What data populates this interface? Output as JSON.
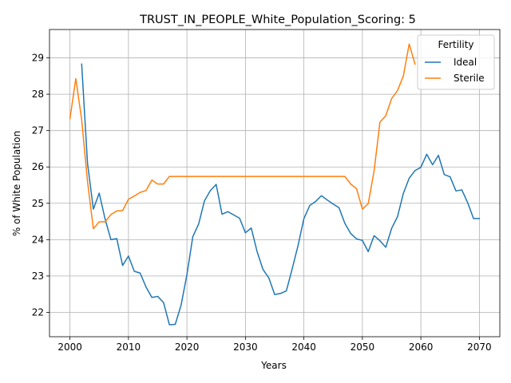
{
  "chart_data": {
    "type": "line",
    "title": "TRUST_IN_PEOPLE_White_Population_Scoring: 5",
    "xlabel": "Years",
    "ylabel": "% of White Population",
    "xlim": [
      1996.5,
      2073.5
    ],
    "ylim": [
      21.33,
      29.78
    ],
    "xticks": [
      2000,
      2010,
      2020,
      2030,
      2040,
      2050,
      2060,
      2070
    ],
    "yticks": [
      22,
      23,
      24,
      25,
      26,
      27,
      28,
      29
    ],
    "grid": true,
    "legend": {
      "title": "Fertility",
      "placement": "top-right"
    },
    "series": [
      {
        "name": "Ideal",
        "color": "#1f77b4",
        "x": [
          2002,
          2003,
          2004,
          2005,
          2006,
          2007,
          2008,
          2009,
          2010,
          2011,
          2012,
          2013,
          2014,
          2015,
          2016,
          2017,
          2018,
          2019,
          2020,
          2021,
          2022,
          2023,
          2024,
          2025,
          2026,
          2027,
          2028,
          2029,
          2030,
          2031,
          2032,
          2033,
          2034,
          2035,
          2036,
          2037,
          2038,
          2039,
          2040,
          2041,
          2042,
          2043,
          2044,
          2045,
          2046,
          2047,
          2048,
          2049,
          2050,
          2051,
          2052,
          2053,
          2054,
          2055,
          2056,
          2057,
          2058,
          2059,
          2060,
          2061,
          2062,
          2063,
          2064,
          2065,
          2066,
          2067,
          2068,
          2069,
          2070
        ],
        "y": [
          28.83,
          26.1,
          24.84,
          25.28,
          24.57,
          24.0,
          24.03,
          23.29,
          23.55,
          23.13,
          23.08,
          22.7,
          22.41,
          22.44,
          22.27,
          21.66,
          21.67,
          22.2,
          23.04,
          24.08,
          24.43,
          25.07,
          25.35,
          25.52,
          24.7,
          24.77,
          24.68,
          24.59,
          24.19,
          24.32,
          23.67,
          23.18,
          22.95,
          22.49,
          22.52,
          22.59,
          23.2,
          23.84,
          24.58,
          24.94,
          25.05,
          25.21,
          25.09,
          24.98,
          24.88,
          24.45,
          24.17,
          24.02,
          23.98,
          23.67,
          24.11,
          23.97,
          23.79,
          24.31,
          24.63,
          25.27,
          25.69,
          25.9,
          25.99,
          26.35,
          26.06,
          26.32,
          25.79,
          25.73,
          25.34,
          25.37,
          25.02,
          24.58,
          24.58
        ]
      },
      {
        "name": "Sterile",
        "color": "#ff7f0e",
        "x": [
          2000,
          2001,
          2002,
          2003,
          2004,
          2005,
          2006,
          2007,
          2008,
          2009,
          2010,
          2011,
          2012,
          2013,
          2014,
          2015,
          2016,
          2017,
          2018,
          2019,
          2020,
          2021,
          2022,
          2023,
          2024,
          2025,
          2026,
          2027,
          2028,
          2029,
          2030,
          2031,
          2032,
          2033,
          2034,
          2035,
          2036,
          2037,
          2038,
          2039,
          2040,
          2041,
          2042,
          2043,
          2044,
          2045,
          2046,
          2047,
          2048,
          2049,
          2050,
          2051,
          2052,
          2053,
          2054,
          2055,
          2056,
          2057,
          2058,
          2059
        ],
        "y": [
          27.33,
          28.43,
          27.3,
          25.6,
          24.3,
          24.49,
          24.49,
          24.69,
          24.79,
          24.8,
          25.11,
          25.2,
          25.3,
          25.35,
          25.64,
          25.53,
          25.53,
          25.74,
          25.74,
          25.74,
          25.74,
          25.74,
          25.74,
          25.74,
          25.74,
          25.74,
          25.74,
          25.74,
          25.74,
          25.74,
          25.74,
          25.74,
          25.74,
          25.74,
          25.74,
          25.74,
          25.74,
          25.74,
          25.74,
          25.74,
          25.74,
          25.74,
          25.74,
          25.74,
          25.74,
          25.74,
          25.74,
          25.74,
          25.53,
          25.4,
          24.84,
          24.99,
          25.89,
          27.23,
          27.41,
          27.88,
          28.1,
          28.5,
          29.38,
          28.83
        ]
      }
    ]
  }
}
